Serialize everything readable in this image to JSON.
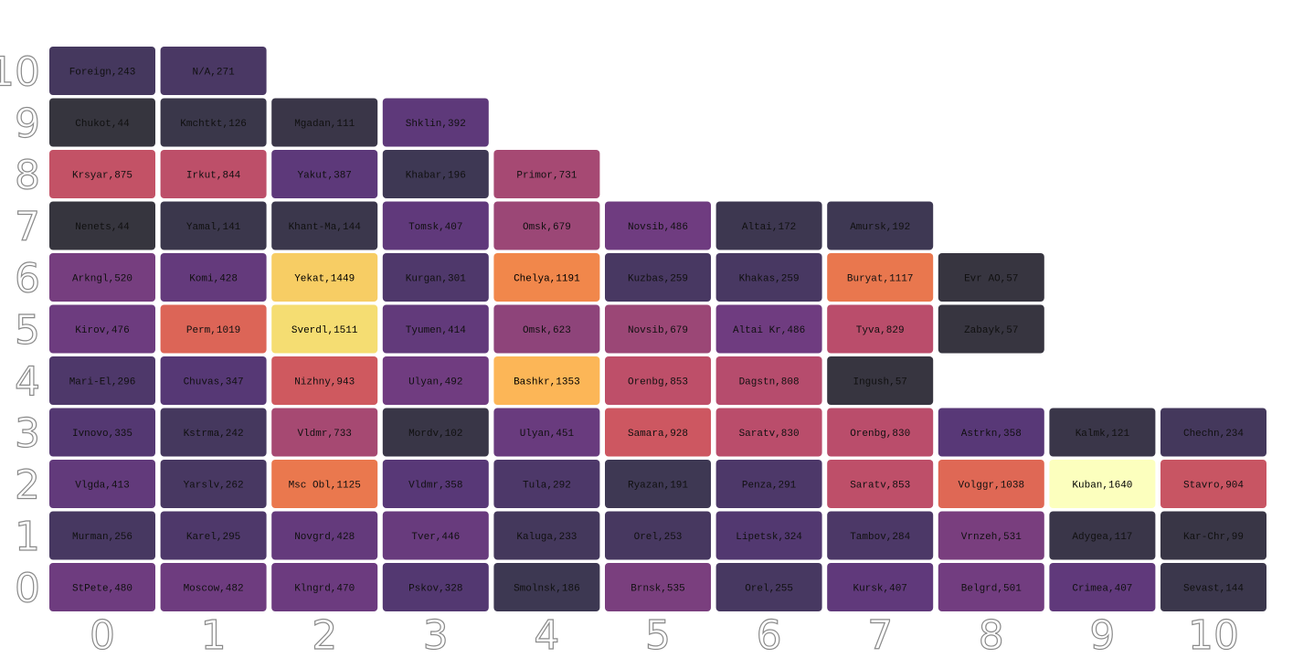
{
  "chart_data": {
    "type": "heatmap",
    "title": "",
    "xlabel": "",
    "ylabel": "",
    "x_ticks": [
      "0",
      "1",
      "2",
      "3",
      "4",
      "5",
      "6",
      "7",
      "8",
      "9",
      "10"
    ],
    "y_ticks": [
      "0",
      "1",
      "2",
      "3",
      "4",
      "5",
      "6",
      "7",
      "8",
      "9",
      "10"
    ],
    "grid": false,
    "legend": "none",
    "color_scale": "inferno",
    "color_range": [
      0,
      1640
    ],
    "cells": [
      {
        "x": 0,
        "y": 0,
        "name": "StPete",
        "value": 480,
        "label": "StPete,480"
      },
      {
        "x": 1,
        "y": 0,
        "name": "Moscow",
        "value": 482,
        "label": "Moscow,482"
      },
      {
        "x": 2,
        "y": 0,
        "name": "Klngrd",
        "value": 470,
        "label": "Klngrd,470"
      },
      {
        "x": 3,
        "y": 0,
        "name": "Pskov",
        "value": 328,
        "label": "Pskov,328"
      },
      {
        "x": 4,
        "y": 0,
        "name": "Smolnsk",
        "value": 186,
        "label": "Smolnsk,186"
      },
      {
        "x": 5,
        "y": 0,
        "name": "Brnsk",
        "value": 535,
        "label": "Brnsk,535"
      },
      {
        "x": 6,
        "y": 0,
        "name": "Orel",
        "value": 255,
        "label": "Orel,255"
      },
      {
        "x": 7,
        "y": 0,
        "name": "Kursk",
        "value": 407,
        "label": "Kursk,407"
      },
      {
        "x": 8,
        "y": 0,
        "name": "Belgrd",
        "value": 501,
        "label": "Belgrd,501"
      },
      {
        "x": 9,
        "y": 0,
        "name": "Crimea",
        "value": 407,
        "label": "Crimea,407"
      },
      {
        "x": 10,
        "y": 0,
        "name": "Sevast",
        "value": 144,
        "label": "Sevast,144"
      },
      {
        "x": 0,
        "y": 1,
        "name": "Murman",
        "value": 256,
        "label": "Murman,256"
      },
      {
        "x": 1,
        "y": 1,
        "name": "Karel",
        "value": 295,
        "label": "Karel,295"
      },
      {
        "x": 2,
        "y": 1,
        "name": "Novgrd",
        "value": 428,
        "label": "Novgrd,428"
      },
      {
        "x": 3,
        "y": 1,
        "name": "Tver",
        "value": 446,
        "label": "Tver,446"
      },
      {
        "x": 4,
        "y": 1,
        "name": "Kaluga",
        "value": 233,
        "label": "Kaluga,233"
      },
      {
        "x": 5,
        "y": 1,
        "name": "Orel",
        "value": 253,
        "label": "Orel,253"
      },
      {
        "x": 6,
        "y": 1,
        "name": "Lipetsk",
        "value": 324,
        "label": "Lipetsk,324"
      },
      {
        "x": 7,
        "y": 1,
        "name": "Tambov",
        "value": 284,
        "label": "Tambov,284"
      },
      {
        "x": 8,
        "y": 1,
        "name": "Vrnzeh",
        "value": 531,
        "label": "Vrnzeh,531"
      },
      {
        "x": 9,
        "y": 1,
        "name": "Adygea",
        "value": 117,
        "label": "Adygea,117"
      },
      {
        "x": 10,
        "y": 1,
        "name": "Kar-Chr",
        "value": 99,
        "label": "Kar-Chr,99"
      },
      {
        "x": 0,
        "y": 2,
        "name": "Vlgda",
        "value": 413,
        "label": "Vlgda,413"
      },
      {
        "x": 1,
        "y": 2,
        "name": "Yarslv",
        "value": 262,
        "label": "Yarslv,262"
      },
      {
        "x": 2,
        "y": 2,
        "name": "Msc Obl",
        "value": 1125,
        "label": "Msc Obl,1125"
      },
      {
        "x": 3,
        "y": 2,
        "name": "Vldmr",
        "value": 358,
        "label": "Vldmr,358"
      },
      {
        "x": 4,
        "y": 2,
        "name": "Tula",
        "value": 292,
        "label": "Tula,292"
      },
      {
        "x": 5,
        "y": 2,
        "name": "Ryazan",
        "value": 191,
        "label": "Ryazan,191"
      },
      {
        "x": 6,
        "y": 2,
        "name": "Penza",
        "value": 291,
        "label": "Penza,291"
      },
      {
        "x": 7,
        "y": 2,
        "name": "Saratv",
        "value": 853,
        "label": "Saratv,853"
      },
      {
        "x": 8,
        "y": 2,
        "name": "Volggr",
        "value": 1038,
        "label": "Volggr,1038"
      },
      {
        "x": 9,
        "y": 2,
        "name": "Kuban",
        "value": 1640,
        "label": "Kuban,1640"
      },
      {
        "x": 10,
        "y": 2,
        "name": "Stavro",
        "value": 904,
        "label": "Stavro,904"
      },
      {
        "x": 0,
        "y": 3,
        "name": "Ivnovo",
        "value": 335,
        "label": "Ivnovo,335"
      },
      {
        "x": 1,
        "y": 3,
        "name": "Kstrma",
        "value": 242,
        "label": "Kstrma,242"
      },
      {
        "x": 2,
        "y": 3,
        "name": "Vldmr",
        "value": 733,
        "label": "Vldmr,733"
      },
      {
        "x": 3,
        "y": 3,
        "name": "Mordv",
        "value": 102,
        "label": "Mordv,102"
      },
      {
        "x": 4,
        "y": 3,
        "name": "Ulyan",
        "value": 451,
        "label": "Ulyan,451"
      },
      {
        "x": 5,
        "y": 3,
        "name": "Samara",
        "value": 928,
        "label": "Samara,928"
      },
      {
        "x": 6,
        "y": 3,
        "name": "Saratv",
        "value": 830,
        "label": "Saratv,830"
      },
      {
        "x": 7,
        "y": 3,
        "name": "Orenbg",
        "value": 830,
        "label": "Orenbg,830"
      },
      {
        "x": 8,
        "y": 3,
        "name": "Astrkn",
        "value": 358,
        "label": "Astrkn,358"
      },
      {
        "x": 9,
        "y": 3,
        "name": "Kalmk",
        "value": 121,
        "label": "Kalmk,121"
      },
      {
        "x": 10,
        "y": 3,
        "name": "Chechn",
        "value": 234,
        "label": "Chechn,234"
      },
      {
        "x": 0,
        "y": 4,
        "name": "Mari-El",
        "value": 296,
        "label": "Mari-El,296"
      },
      {
        "x": 1,
        "y": 4,
        "name": "Chuvas",
        "value": 347,
        "label": "Chuvas,347"
      },
      {
        "x": 2,
        "y": 4,
        "name": "Nizhny",
        "value": 943,
        "label": "Nizhny,943"
      },
      {
        "x": 3,
        "y": 4,
        "name": "Ulyan",
        "value": 492,
        "label": "Ulyan,492"
      },
      {
        "x": 4,
        "y": 4,
        "name": "Bashkr",
        "value": 1353,
        "label": "Bashkr,1353"
      },
      {
        "x": 5,
        "y": 4,
        "name": "Orenbg",
        "value": 853,
        "label": "Orenbg,853"
      },
      {
        "x": 6,
        "y": 4,
        "name": "Dagstn",
        "value": 808,
        "label": "Dagstn,808"
      },
      {
        "x": 7,
        "y": 4,
        "name": "Ingush",
        "value": 57,
        "label": "Ingush,57"
      },
      {
        "x": 0,
        "y": 5,
        "name": "Kirov",
        "value": 476,
        "label": "Kirov,476"
      },
      {
        "x": 1,
        "y": 5,
        "name": "Perm",
        "value": 1019,
        "label": "Perm,1019"
      },
      {
        "x": 2,
        "y": 5,
        "name": "Sverdl",
        "value": 1511,
        "label": "Sverdl,1511"
      },
      {
        "x": 3,
        "y": 5,
        "name": "Tyumen",
        "value": 414,
        "label": "Tyumen,414"
      },
      {
        "x": 4,
        "y": 5,
        "name": "Omsk",
        "value": 623,
        "label": "Omsk,623"
      },
      {
        "x": 5,
        "y": 5,
        "name": "Novsib",
        "value": 679,
        "label": "Novsib,679"
      },
      {
        "x": 6,
        "y": 5,
        "name": "Altai Kr",
        "value": 486,
        "label": "Altai Kr,486"
      },
      {
        "x": 7,
        "y": 5,
        "name": "Tyva",
        "value": 829,
        "label": "Tyva,829"
      },
      {
        "x": 8,
        "y": 5,
        "name": "Zabayk",
        "value": 57,
        "label": "Zabayk,57"
      },
      {
        "x": 0,
        "y": 6,
        "name": "Arkngl",
        "value": 520,
        "label": "Arkngl,520"
      },
      {
        "x": 1,
        "y": 6,
        "name": "Komi",
        "value": 428,
        "label": "Komi,428"
      },
      {
        "x": 2,
        "y": 6,
        "name": "Yekat",
        "value": 1449,
        "label": "Yekat,1449"
      },
      {
        "x": 3,
        "y": 6,
        "name": "Kurgan",
        "value": 301,
        "label": "Kurgan,301"
      },
      {
        "x": 4,
        "y": 6,
        "name": "Chelya",
        "value": 1191,
        "label": "Chelya,1191"
      },
      {
        "x": 5,
        "y": 6,
        "name": "Kuzbas",
        "value": 259,
        "label": "Kuzbas,259"
      },
      {
        "x": 6,
        "y": 6,
        "name": "Khakas",
        "value": 259,
        "label": "Khakas,259"
      },
      {
        "x": 7,
        "y": 6,
        "name": "Buryat",
        "value": 1117,
        "label": "Buryat,1117"
      },
      {
        "x": 8,
        "y": 6,
        "name": "Evr AO",
        "value": 57,
        "label": "Evr AO,57"
      },
      {
        "x": 0,
        "y": 7,
        "name": "Nenets",
        "value": 44,
        "label": "Nenets,44"
      },
      {
        "x": 1,
        "y": 7,
        "name": "Yamal",
        "value": 141,
        "label": "Yamal,141"
      },
      {
        "x": 2,
        "y": 7,
        "name": "Khant-Ma",
        "value": 144,
        "label": "Khant-Ma,144"
      },
      {
        "x": 3,
        "y": 7,
        "name": "Tomsk",
        "value": 407,
        "label": "Tomsk,407"
      },
      {
        "x": 4,
        "y": 7,
        "name": "Omsk",
        "value": 679,
        "label": "Omsk,679"
      },
      {
        "x": 5,
        "y": 7,
        "name": "Novsib",
        "value": 486,
        "label": "Novsib,486"
      },
      {
        "x": 6,
        "y": 7,
        "name": "Altai",
        "value": 172,
        "label": "Altai,172"
      },
      {
        "x": 7,
        "y": 7,
        "name": "Amursk",
        "value": 192,
        "label": "Amursk,192"
      },
      {
        "x": 0,
        "y": 8,
        "name": "Krsyar",
        "value": 875,
        "label": "Krsyar,875"
      },
      {
        "x": 1,
        "y": 8,
        "name": "Irkut",
        "value": 844,
        "label": "Irkut,844"
      },
      {
        "x": 2,
        "y": 8,
        "name": "Yakut",
        "value": 387,
        "label": "Yakut,387"
      },
      {
        "x": 3,
        "y": 8,
        "name": "Khabar",
        "value": 196,
        "label": "Khabar,196"
      },
      {
        "x": 4,
        "y": 8,
        "name": "Primor",
        "value": 731,
        "label": "Primor,731"
      },
      {
        "x": 0,
        "y": 9,
        "name": "Chukot",
        "value": 44,
        "label": "Chukot,44"
      },
      {
        "x": 1,
        "y": 9,
        "name": "Kmchtkt",
        "value": 126,
        "label": "Kmchtkt,126"
      },
      {
        "x": 2,
        "y": 9,
        "name": "Mgadan",
        "value": 111,
        "label": "Mgadan,111"
      },
      {
        "x": 3,
        "y": 9,
        "name": "Shklin",
        "value": 392,
        "label": "Shklin,392"
      },
      {
        "x": 0,
        "y": 10,
        "name": "Foreign",
        "value": 243,
        "label": "Foreign,243"
      },
      {
        "x": 1,
        "y": 10,
        "name": "N/A",
        "value": 271,
        "label": "N/A,271"
      }
    ]
  }
}
